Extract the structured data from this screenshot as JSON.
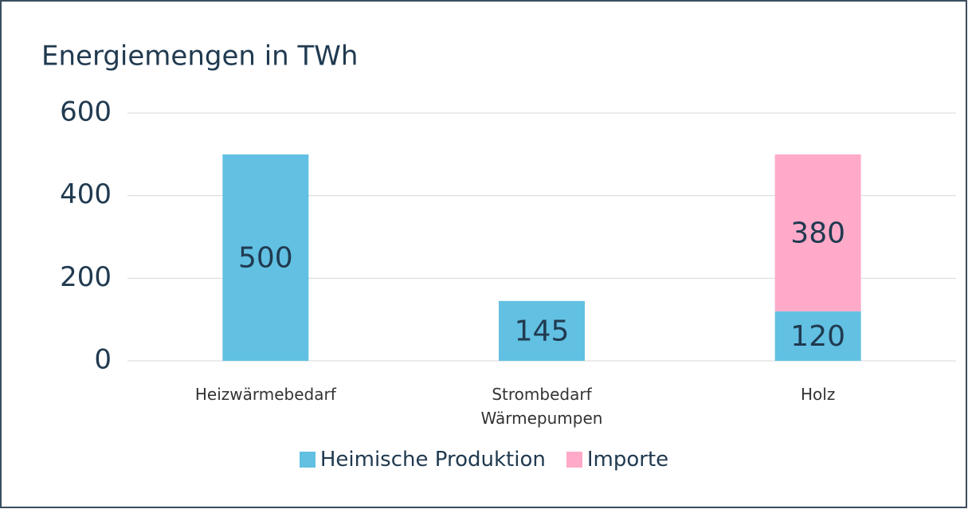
{
  "chart_data": {
    "type": "stacked_bar",
    "title": "Energiemengen in TWh",
    "categories": [
      "Heizwärmebedarf",
      "Strombedarf Wärmepumpen",
      "Holz"
    ],
    "series": [
      {
        "name": "Heimische Produktion",
        "color": "#62c0e2",
        "values": [
          500,
          145,
          120
        ]
      },
      {
        "name": "Importe",
        "color": "#ffaac9",
        "values": [
          null,
          null,
          380
        ]
      }
    ],
    "ylim": [
      0,
      600
    ],
    "yticks": [
      0,
      200,
      400,
      600
    ],
    "grid": true,
    "legend": "bottom"
  }
}
